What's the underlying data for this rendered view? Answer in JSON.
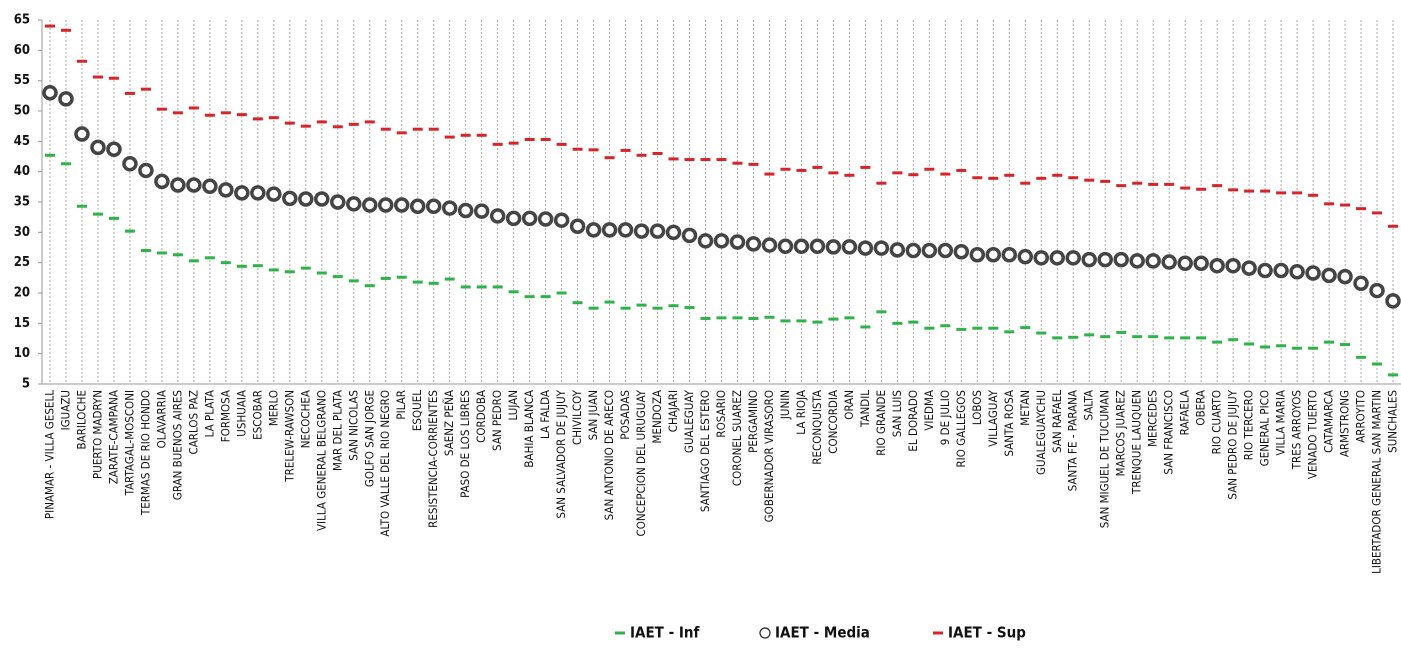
{
  "chart_data": {
    "type": "scatter",
    "categories": [
      "PINAMAR - VILLA GESELL",
      "IGUAZU",
      "BARILOCHE",
      "PUERTO MADRYN",
      "ZARATE-CAMPANA",
      "TARTAGAL-MOSCONI",
      "TERMAS DE RIO HONDO",
      "OLAVARRIA",
      "GRAN BUENOS AIRES",
      "CARLOS PAZ",
      "LA PLATA",
      "FORMOSA",
      "USHUAIA",
      "ESCOBAR",
      "MERLO",
      "TRELEW-RAWSON",
      "NECOCHEA",
      "VILLA GENERAL BELGRANO",
      "MAR DEL PLATA",
      "SAN NICOLAS",
      "GOLFO SAN JORGE",
      "ALTO VALLE DEL RIO NEGRO",
      "PILAR",
      "ESQUEL",
      "RESISTENCIA-CORRIENTES",
      "SAENZ PEÑA",
      "PASO DE LOS LIBRES",
      "CORDOBA",
      "SAN PEDRO",
      "LUJAN",
      "BAHIA BLANCA",
      "LA FALDA",
      "SAN SALVADOR DE JUJUY",
      "CHIVILCOY",
      "SAN JUAN",
      "SAN ANTONIO DE ARECO",
      "POSADAS",
      "CONCEPCION DEL URUGUAY",
      "MENDOZA",
      "CHAJARI",
      "GUALEGUAY",
      "SANTIAGO DEL ESTERO",
      "ROSARIO",
      "CORONEL SUAREZ",
      "PERGAMINO",
      "GOBERNADOR VIRASORO",
      "JUNIN",
      "LA RIOJA",
      "RECONQUISTA",
      "CONCORDIA",
      "ORAN",
      "TANDIL",
      "RIO GRANDE",
      "SAN LUIS",
      "EL DORADO",
      "VIEDMA",
      "9 DE JULIO",
      "RIO GALLEGOS",
      "LOBOS",
      "VILLAGUAY",
      "SANTA ROSA",
      "METAN",
      "GUALEGUAYCHU",
      "SAN RAFAEL",
      "SANTA FE - PARANA",
      "SALTA",
      "SAN MIGUEL DE TUCUMAN",
      "MARCOS JUAREZ",
      "TRENQUE LAUQUEN",
      "MERCEDES",
      "SAN FRANCISCO",
      "RAFAELA",
      "OBERA",
      "RIO CUARTO",
      "SAN PEDRO DE JUJUY",
      "RIO TERCERO",
      "GENERAL PICO",
      "VILLA MARIA",
      "TRES ARROYOS",
      "VENADO TUERTO",
      "CATAMARCA",
      "ARMSTRONG",
      "ARROYITO",
      "LIBERTADOR GENERAL SAN MARTIN",
      "SUNCHALES"
    ],
    "series": [
      {
        "name": "IAET - Inf",
        "color": "#2db34a",
        "marker": "dash",
        "values": [
          42.7,
          41.3,
          34.3,
          33.0,
          32.3,
          30.2,
          27.0,
          26.6,
          26.3,
          25.3,
          25.8,
          25.0,
          24.4,
          24.5,
          23.8,
          23.5,
          24.1,
          23.3,
          22.7,
          22.0,
          21.2,
          22.4,
          22.6,
          21.8,
          21.6,
          22.3,
          21.0,
          21.0,
          21.0,
          20.2,
          19.4,
          19.4,
          20.0,
          18.4,
          17.5,
          18.5,
          17.5,
          18.0,
          17.5,
          17.9,
          17.6,
          15.8,
          15.9,
          15.9,
          15.8,
          16.0,
          15.4,
          15.4,
          15.2,
          15.7,
          15.9,
          14.4,
          16.9,
          15.0,
          15.2,
          14.2,
          14.6,
          14.0,
          14.2,
          14.2,
          13.6,
          14.3,
          13.4,
          12.6,
          12.7,
          13.1,
          12.8,
          13.5,
          12.8,
          12.8,
          12.6,
          12.6,
          12.6,
          11.9,
          12.3,
          11.6,
          11.1,
          11.3,
          10.9,
          10.9,
          11.9,
          11.5,
          9.4,
          8.3,
          6.5
        ]
      },
      {
        "name": "IAET - Media",
        "color": "#444444",
        "marker": "circle",
        "values": [
          53.0,
          52.0,
          46.2,
          44.0,
          43.7,
          41.3,
          40.2,
          38.4,
          37.8,
          37.8,
          37.6,
          37.0,
          36.5,
          36.5,
          36.3,
          35.6,
          35.5,
          35.5,
          35.0,
          34.7,
          34.5,
          34.5,
          34.5,
          34.3,
          34.3,
          34.0,
          33.6,
          33.5,
          32.7,
          32.3,
          32.3,
          32.2,
          32.0,
          31.0,
          30.4,
          30.4,
          30.4,
          30.2,
          30.2,
          30.0,
          29.5,
          28.6,
          28.6,
          28.4,
          28.1,
          27.9,
          27.7,
          27.7,
          27.7,
          27.6,
          27.6,
          27.4,
          27.4,
          27.1,
          27.0,
          27.0,
          27.0,
          26.8,
          26.3,
          26.3,
          26.3,
          26.0,
          25.8,
          25.8,
          25.8,
          25.5,
          25.5,
          25.5,
          25.3,
          25.3,
          25.1,
          24.9,
          24.9,
          24.5,
          24.5,
          24.1,
          23.7,
          23.7,
          23.5,
          23.3,
          22.9,
          22.7,
          21.6,
          20.4,
          18.7
        ]
      },
      {
        "name": "IAET - Sup",
        "color": "#d9232a",
        "marker": "dash",
        "values": [
          64.0,
          63.3,
          58.2,
          55.6,
          55.4,
          52.9,
          53.6,
          50.3,
          49.7,
          50.5,
          49.3,
          49.7,
          49.4,
          48.7,
          48.9,
          48.0,
          47.5,
          48.2,
          47.4,
          47.8,
          48.2,
          47.0,
          46.4,
          47.0,
          47.0,
          45.7,
          46.0,
          46.0,
          44.5,
          44.7,
          45.3,
          45.3,
          44.5,
          43.7,
          43.6,
          42.3,
          43.5,
          42.7,
          43.0,
          42.1,
          42.0,
          42.0,
          42.0,
          41.4,
          41.2,
          39.6,
          40.4,
          40.2,
          40.7,
          39.8,
          39.4,
          40.7,
          38.1,
          39.8,
          39.5,
          40.4,
          39.6,
          40.2,
          39.0,
          38.9,
          39.4,
          38.1,
          38.9,
          39.4,
          39.0,
          38.6,
          38.4,
          37.7,
          38.1,
          37.9,
          37.9,
          37.3,
          37.1,
          37.7,
          37.0,
          36.8,
          36.8,
          36.5,
          36.5,
          36.1,
          34.7,
          34.5,
          33.9,
          33.2,
          31.0
        ]
      }
    ],
    "ylim": [
      5,
      65
    ],
    "yticks": [
      5,
      10,
      15,
      20,
      25,
      30,
      35,
      40,
      45,
      50,
      55,
      60,
      65
    ],
    "grid": "vertical"
  }
}
